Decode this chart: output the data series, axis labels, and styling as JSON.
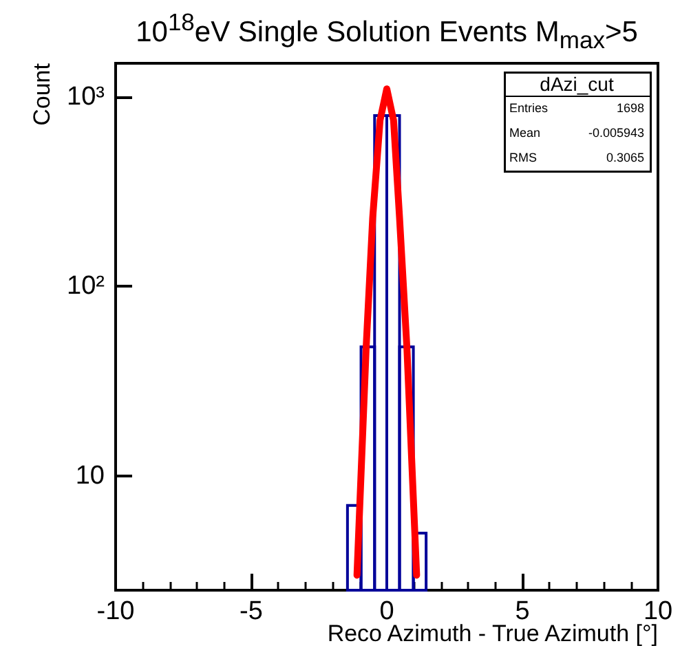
{
  "chart_data": {
    "type": "histogram",
    "title": "10$^{18}$eV Single Solution Events M$_{max}$>5",
    "xlabel": "Reco Azimuth - True Azimuth [°]",
    "ylabel": "Count",
    "series": [
      {
        "color": "#000099",
        "bins": [
          -1.45,
          -0.95,
          -0.45,
          0,
          0.47,
          0.98,
          1.45
        ],
        "values": [
          7,
          48,
          795,
          795,
          48,
          5
        ]
      },
      {
        "type": "line",
        "color": "#ff0000",
        "x": [
          -1.1,
          -0.76,
          -0.52,
          -0.25,
          0,
          0.25,
          0.47,
          0.74,
          1.1
        ],
        "values": [
          3,
          48,
          230,
          750,
          1100,
          750,
          230,
          48,
          3
        ]
      }
    ],
    "xlim": [
      -10,
      10
    ],
    "xticks": [
      -10,
      -5,
      0,
      5,
      10
    ],
    "ylim": [
      2.5,
      1500
    ],
    "yticks": [
      {
        "value": 10,
        "label": "10"
      },
      {
        "value": 100,
        "label": "10²"
      },
      {
        "value": 1000,
        "label": "10³"
      }
    ],
    "log": "y",
    "marker": "none",
    "line_style": "solid",
    "annotations": [
      "dAzi_cut",
      "Entries",
      "1698",
      "Mean",
      "-0.005943",
      "RMS",
      "0.3065"
    ]
  }
}
